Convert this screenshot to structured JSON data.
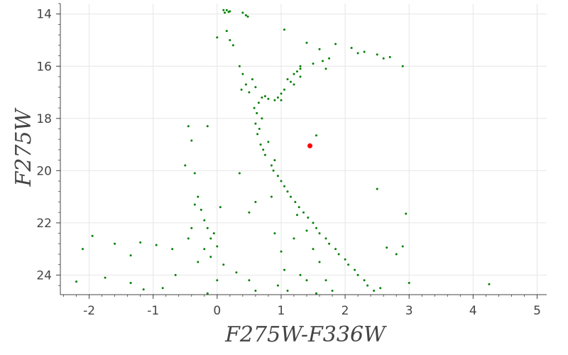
{
  "chart_data": {
    "type": "scatter",
    "title": "",
    "xlabel": "F275W-F336W",
    "ylabel": "F275W",
    "xlim": [
      -2.45,
      5.15
    ],
    "ylim": [
      24.75,
      13.6
    ],
    "y_inverted": true,
    "grid": true,
    "x_ticks": [
      "-2",
      "-1",
      "0",
      "1",
      "2",
      "3",
      "4",
      "5"
    ],
    "y_ticks": [
      "14",
      "16",
      "18",
      "20",
      "22",
      "24"
    ],
    "colors": {
      "points": "#008000",
      "highlight": "#ff0000",
      "grid": "#e6e6e6",
      "axis": "#444444"
    },
    "highlight_point": {
      "x": 1.45,
      "y": 19.05
    },
    "series": [
      {
        "color": "#008000",
        "points": [
          [
            0.1,
            13.85
          ],
          [
            0.15,
            13.85
          ],
          [
            0.2,
            13.9
          ],
          [
            0.12,
            13.95
          ],
          [
            0.18,
            13.92
          ],
          [
            0.4,
            13.95
          ],
          [
            0.45,
            14.05
          ],
          [
            0.48,
            14.1
          ],
          [
            0.0,
            14.9
          ],
          [
            0.15,
            14.65
          ],
          [
            1.05,
            14.6
          ],
          [
            0.2,
            15.0
          ],
          [
            0.25,
            15.2
          ],
          [
            1.4,
            15.1
          ],
          [
            1.6,
            15.35
          ],
          [
            1.85,
            15.15
          ],
          [
            2.1,
            15.3
          ],
          [
            2.3,
            15.45
          ],
          [
            2.5,
            15.55
          ],
          [
            2.7,
            15.65
          ],
          [
            2.9,
            16.0
          ],
          [
            2.6,
            15.7
          ],
          [
            1.3,
            16.0
          ],
          [
            1.5,
            15.9
          ],
          [
            1.65,
            15.8
          ],
          [
            2.2,
            15.5
          ],
          [
            1.7,
            16.1
          ],
          [
            1.75,
            15.7
          ],
          [
            0.35,
            16.0
          ],
          [
            0.4,
            16.3
          ],
          [
            0.45,
            16.7
          ],
          [
            0.5,
            17.0
          ],
          [
            0.38,
            16.9
          ],
          [
            0.55,
            16.5
          ],
          [
            0.6,
            16.8
          ],
          [
            1.1,
            16.5
          ],
          [
            1.2,
            16.3
          ],
          [
            1.25,
            16.2
          ],
          [
            1.3,
            16.1
          ],
          [
            1.15,
            16.6
          ],
          [
            1.05,
            16.9
          ],
          [
            1.0,
            17.05
          ],
          [
            0.95,
            17.2
          ],
          [
            1.2,
            16.7
          ],
          [
            1.3,
            16.4
          ],
          [
            0.7,
            17.2
          ],
          [
            0.8,
            17.25
          ],
          [
            0.9,
            17.3
          ],
          [
            0.75,
            17.15
          ],
          [
            1.0,
            17.3
          ],
          [
            0.65,
            17.4
          ],
          [
            0.62,
            17.8
          ],
          [
            0.6,
            18.2
          ],
          [
            0.63,
            18.6
          ],
          [
            0.68,
            19.0
          ],
          [
            0.75,
            19.4
          ],
          [
            0.85,
            19.8
          ],
          [
            0.95,
            20.2
          ],
          [
            1.05,
            20.6
          ],
          [
            1.15,
            21.0
          ],
          [
            1.28,
            21.4
          ],
          [
            1.42,
            21.8
          ],
          [
            1.55,
            22.2
          ],
          [
            1.7,
            22.6
          ],
          [
            1.85,
            23.0
          ],
          [
            2.0,
            23.4
          ],
          [
            2.15,
            23.8
          ],
          [
            2.3,
            24.2
          ],
          [
            2.45,
            24.6
          ],
          [
            0.58,
            17.6
          ],
          [
            0.66,
            18.4
          ],
          [
            0.72,
            19.2
          ],
          [
            0.88,
            20.0
          ],
          [
            1.1,
            20.8
          ],
          [
            1.35,
            21.6
          ],
          [
            1.6,
            22.4
          ],
          [
            1.9,
            23.2
          ],
          [
            2.2,
            24.0
          ],
          [
            0.7,
            18.0
          ],
          [
            0.8,
            18.9
          ],
          [
            0.9,
            19.6
          ],
          [
            1.0,
            20.4
          ],
          [
            1.22,
            21.2
          ],
          [
            1.5,
            22.0
          ],
          [
            1.75,
            22.8
          ],
          [
            2.05,
            23.6
          ],
          [
            2.35,
            24.4
          ],
          [
            1.25,
            21.7
          ],
          [
            1.4,
            22.3
          ],
          [
            1.2,
            22.6
          ],
          [
            1.5,
            23.0
          ],
          [
            1.6,
            23.5
          ],
          [
            1.3,
            24.0
          ],
          [
            1.05,
            23.8
          ],
          [
            1.7,
            24.2
          ],
          [
            1.8,
            24.6
          ],
          [
            2.55,
            24.5
          ],
          [
            0.9,
            22.4
          ],
          [
            1.0,
            23.1
          ],
          [
            0.95,
            24.4
          ],
          [
            1.1,
            24.6
          ],
          [
            1.4,
            24.2
          ],
          [
            1.55,
            24.7
          ],
          [
            0.6,
            24.6
          ],
          [
            0.5,
            24.2
          ],
          [
            0.3,
            23.9
          ],
          [
            -0.45,
            18.3
          ],
          [
            -0.15,
            18.3
          ],
          [
            -0.4,
            18.85
          ],
          [
            -0.35,
            20.1
          ],
          [
            -0.5,
            19.8
          ],
          [
            -0.3,
            21.0
          ],
          [
            -0.35,
            21.3
          ],
          [
            -0.25,
            21.5
          ],
          [
            -0.2,
            21.9
          ],
          [
            -0.15,
            22.2
          ],
          [
            -0.1,
            22.6
          ],
          [
            -0.2,
            23.0
          ],
          [
            -0.05,
            22.4
          ],
          [
            0.0,
            22.9
          ],
          [
            -0.1,
            23.3
          ],
          [
            0.1,
            23.6
          ],
          [
            0.0,
            24.2
          ],
          [
            -0.15,
            24.7
          ],
          [
            -0.4,
            22.2
          ],
          [
            -0.45,
            22.6
          ],
          [
            -0.3,
            23.5
          ],
          [
            -2.2,
            24.25
          ],
          [
            -2.1,
            23.0
          ],
          [
            -1.95,
            22.5
          ],
          [
            -1.75,
            24.1
          ],
          [
            -1.6,
            22.8
          ],
          [
            -1.35,
            23.25
          ],
          [
            -1.35,
            24.3
          ],
          [
            -1.2,
            22.75
          ],
          [
            -1.15,
            24.55
          ],
          [
            -0.95,
            22.85
          ],
          [
            -0.85,
            24.5
          ],
          [
            -0.7,
            23.0
          ],
          [
            -0.65,
            24.0
          ],
          [
            0.05,
            21.4
          ],
          [
            0.35,
            20.1
          ],
          [
            0.6,
            21.2
          ],
          [
            0.5,
            21.6
          ],
          [
            0.85,
            21.0
          ],
          [
            1.55,
            18.65
          ],
          [
            2.5,
            20.7
          ],
          [
            2.95,
            21.65
          ],
          [
            2.9,
            22.9
          ],
          [
            3.0,
            24.3
          ],
          [
            2.65,
            22.95
          ],
          [
            2.8,
            23.2
          ],
          [
            4.25,
            24.35
          ]
        ]
      }
    ]
  }
}
